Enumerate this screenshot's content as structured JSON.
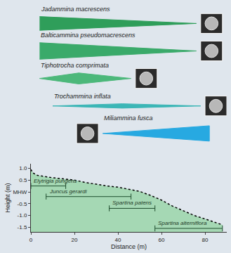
{
  "chart_data": {
    "type": "area",
    "xlabel": "Distance (m)",
    "ylabel": "Height (m)",
    "xlim": [
      0,
      90
    ],
    "xticks": [
      0,
      20,
      40,
      60,
      80
    ],
    "ylim": [
      -1.7,
      1.2
    ],
    "yticks": [
      -1.5,
      {
        "value": -1,
        "label": "-1.0"
      },
      -0.5,
      {
        "value": 0,
        "label": "MHW"
      },
      0.5,
      {
        "value": 1,
        "label": "1.0"
      }
    ],
    "color": "#a5d8b4",
    "line_style": "dotted",
    "grid": false,
    "x": [
      0,
      1,
      3,
      6,
      10,
      15,
      20,
      25,
      30,
      35,
      40,
      45,
      50,
      55,
      60,
      65,
      70,
      75,
      80,
      85,
      88
    ],
    "values": [
      0.95,
      0.8,
      0.7,
      0.65,
      0.6,
      0.55,
      0.5,
      0.4,
      0.32,
      0.25,
      0.2,
      0.12,
      0.02,
      -0.15,
      -0.35,
      -0.6,
      -0.8,
      -1.0,
      -1.15,
      -1.3,
      -1.4
    ],
    "plants": [
      {
        "name": "Elytrigia pungens",
        "start": 0,
        "end": 16,
        "height": 0.25
      },
      {
        "name": "Juncus gerardi",
        "start": 7,
        "end": 46,
        "height": -0.2
      },
      {
        "name": "Spartina patens",
        "start": 36,
        "end": 57,
        "height": -0.7
      },
      {
        "name": "Spartina alterniflora",
        "start": 57,
        "end": 88,
        "height": -1.55
      }
    ],
    "species": [
      {
        "name": "Jadammina macrescens",
        "color": "#2f9e5a",
        "x": [
          4,
          76
        ],
        "abundance": [
          0.25,
          0
        ]
      },
      {
        "name": "Balticammina pseudomacrescens",
        "color": "#3aaa6a",
        "x": [
          4,
          76
        ],
        "abundance": [
          0.3,
          0
        ]
      },
      {
        "name": "Tiphotrocha comprimata",
        "color": "#4cb87a",
        "x": [
          4,
          22,
          46
        ],
        "abundance": [
          0,
          0.2,
          0
        ]
      },
      {
        "name": "Trochammina inflata",
        "color": "#3bb6b6",
        "x": [
          10,
          42,
          78
        ],
        "abundance": [
          0,
          0.08,
          0
        ]
      },
      {
        "name": "Miliammina fusca",
        "color": "#27a9e1",
        "x": [
          33,
          82
        ],
        "abundance": [
          0,
          0.28
        ]
      }
    ]
  }
}
